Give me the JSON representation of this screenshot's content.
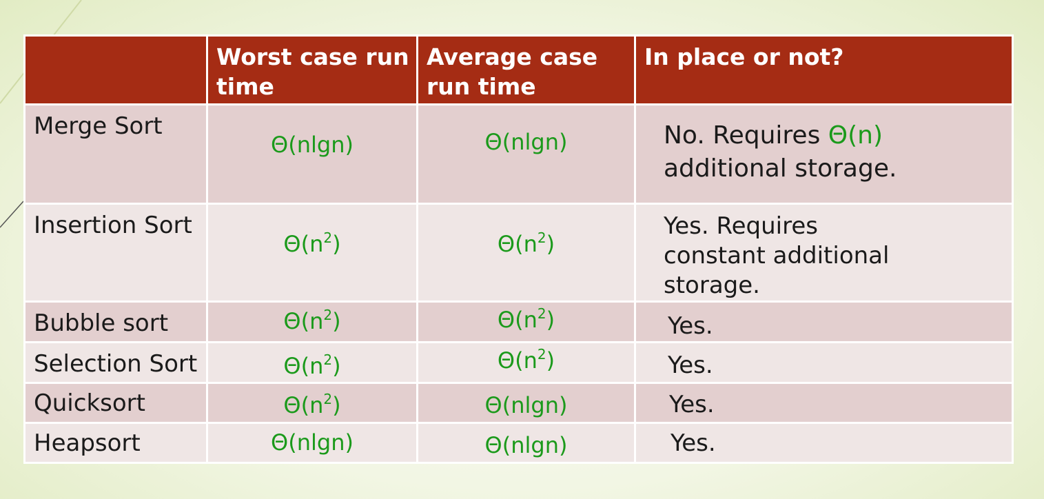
{
  "table": {
    "headers": [
      "",
      "Worst case run time",
      "Average case run time",
      "In place or not?"
    ],
    "rows": [
      {
        "algorithm": "Merge Sort",
        "worst": {
          "base": "Θ(nlgn)",
          "sup": "",
          "tail": ""
        },
        "average": {
          "base": "Θ(nlgn)",
          "sup": "",
          "tail": ""
        },
        "in_place": {
          "text": "No. Requires ",
          "highlight": "Θ(n)",
          "rest": " additional storage."
        }
      },
      {
        "algorithm": "Insertion Sort",
        "worst": {
          "base": "Θ(n",
          "sup": "2",
          "tail": ")"
        },
        "average": {
          "base": "Θ(n",
          "sup": "2",
          "tail": ")"
        },
        "in_place": {
          "text": "Yes. Requires constant additional storage.",
          "highlight": "",
          "rest": ""
        }
      },
      {
        "algorithm": "Bubble sort",
        "worst": {
          "base": "Θ(n",
          "sup": "2",
          "tail": ")"
        },
        "average": {
          "base": "Θ(n",
          "sup": "2",
          "tail": ")"
        },
        "in_place": {
          "text": "Yes.",
          "highlight": "",
          "rest": ""
        }
      },
      {
        "algorithm": "Selection Sort",
        "worst": {
          "base": "Θ(n",
          "sup": "2",
          "tail": ")"
        },
        "average": {
          "base": "Θ(n",
          "sup": "2",
          "tail": ")"
        },
        "in_place": {
          "text": "Yes.",
          "highlight": "",
          "rest": ""
        }
      },
      {
        "algorithm": "Quicksort",
        "worst": {
          "base": "Θ(n",
          "sup": "2",
          "tail": ")"
        },
        "average": {
          "base": "Θ(nlgn)",
          "sup": "",
          "tail": ""
        },
        "in_place": {
          "text": "Yes.",
          "highlight": "",
          "rest": ""
        }
      },
      {
        "algorithm": "Heapsort",
        "worst": {
          "base": "Θ(nlgn)",
          "sup": "",
          "tail": ""
        },
        "average": {
          "base": "Θ(nlgn)",
          "sup": "",
          "tail": ""
        },
        "in_place": {
          "text": "Yes.",
          "highlight": "",
          "rest": ""
        }
      }
    ]
  },
  "colors": {
    "header_bg": "#a52c14",
    "row_dark": "#e3cfcf",
    "row_light": "#efe6e5",
    "complexity_green": "#1b9a1b"
  }
}
